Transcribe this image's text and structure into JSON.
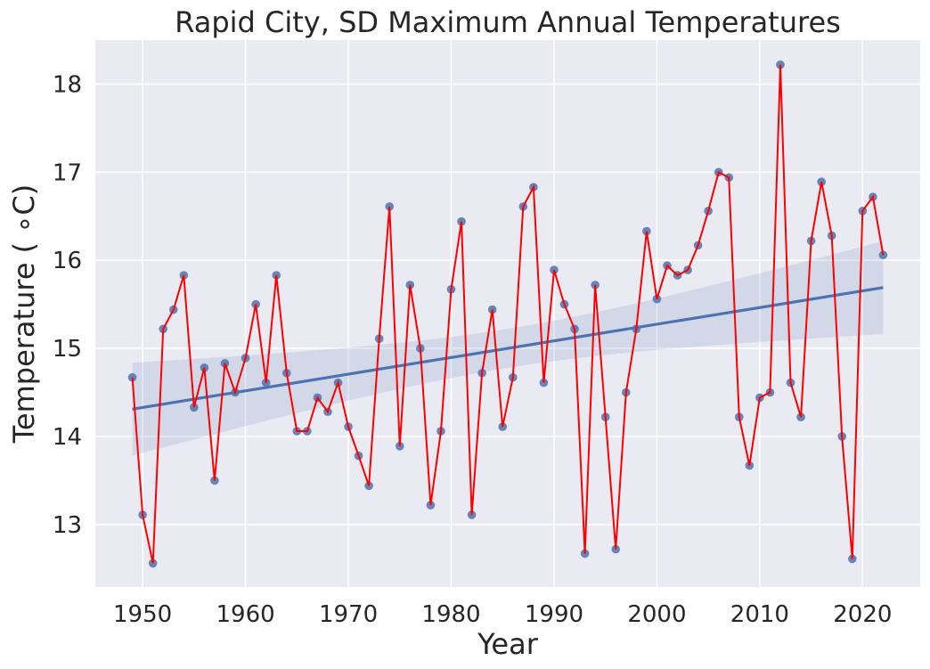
{
  "chart_data": {
    "type": "scatter",
    "title": "Rapid City, SD Maximum Annual Temperatures",
    "xlabel": "Year",
    "ylabel": "Temperature ( ∘C)",
    "xlim": [
      1945.4,
      2025.6
    ],
    "ylim": [
      12.29,
      18.5
    ],
    "xticks": [
      1950,
      1960,
      1970,
      1980,
      1990,
      2000,
      2010,
      2020
    ],
    "yticks": [
      13,
      14,
      15,
      16,
      17,
      18
    ],
    "grid": true,
    "background": "#eaeaf2",
    "colors": {
      "points": "#4c72b0",
      "line": "#ff0000",
      "regression": "#4c72b0"
    },
    "x": [
      1949,
      1950,
      1951,
      1952,
      1953,
      1954,
      1955,
      1956,
      1957,
      1958,
      1959,
      1960,
      1961,
      1962,
      1963,
      1964,
      1965,
      1966,
      1967,
      1968,
      1969,
      1970,
      1971,
      1972,
      1973,
      1974,
      1975,
      1976,
      1977,
      1978,
      1979,
      1980,
      1981,
      1982,
      1983,
      1984,
      1985,
      1986,
      1987,
      1988,
      1989,
      1990,
      1991,
      1992,
      1993,
      1994,
      1995,
      1996,
      1997,
      1998,
      1999,
      2000,
      2001,
      2002,
      2003,
      2004,
      2005,
      2006,
      2007,
      2008,
      2009,
      2010,
      2011,
      2012,
      2013,
      2014,
      2015,
      2016,
      2017,
      2018,
      2019,
      2020,
      2021,
      2022
    ],
    "y": [
      14.67,
      13.11,
      12.56,
      15.22,
      15.44,
      15.83,
      14.33,
      14.78,
      13.5,
      14.83,
      14.5,
      14.89,
      15.5,
      14.61,
      15.83,
      14.72,
      14.06,
      14.06,
      14.44,
      14.28,
      14.61,
      14.11,
      13.78,
      13.44,
      15.11,
      16.61,
      13.89,
      15.72,
      15.0,
      13.22,
      14.06,
      15.67,
      16.44,
      13.11,
      14.72,
      15.44,
      14.11,
      14.67,
      16.61,
      16.83,
      14.61,
      15.89,
      15.5,
      15.22,
      12.67,
      15.72,
      14.22,
      12.72,
      14.5,
      15.22,
      16.33,
      15.56,
      15.94,
      15.83,
      15.89,
      16.17,
      16.56,
      17.0,
      16.94,
      14.22,
      13.67,
      14.44,
      14.5,
      18.22,
      14.61,
      14.22,
      16.22,
      16.89,
      16.28,
      14.0,
      12.61,
      16.56,
      16.72,
      16.06
    ],
    "regression": {
      "x": [
        1949,
        2022
      ],
      "y": [
        14.31,
        15.69
      ],
      "ci_upper": [
        14.76,
        16.27
      ],
      "ci_lower": [
        13.88,
        15.04
      ]
    }
  }
}
